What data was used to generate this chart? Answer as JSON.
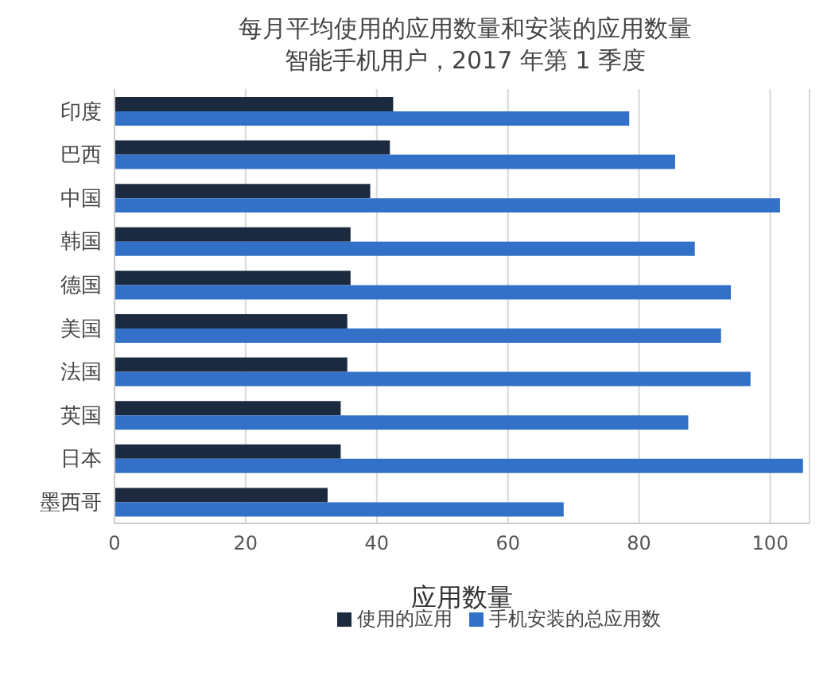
{
  "chart_data": {
    "type": "bar",
    "orientation": "horizontal",
    "title": "每月平均使用的应用数量和安装的应用数量",
    "subtitle": "智能手机用户，2017 年第 1 季度",
    "xlabel": "应用数量",
    "categories": [
      "印度",
      "巴西",
      "中国",
      "韩国",
      "德国",
      "美国",
      "法国",
      "英国",
      "日本",
      "墨西哥"
    ],
    "series": [
      {
        "name": "使用的应用",
        "color": "#1c2a3f",
        "values": [
          42.5,
          42,
          39,
          36,
          36,
          35.5,
          35.5,
          34.5,
          34.5,
          32.5
        ]
      },
      {
        "name": "手机安装的总应用数",
        "color": "#3371c9",
        "values": [
          78.5,
          85.5,
          101.5,
          88.5,
          94,
          92.5,
          97,
          87.5,
          105,
          68.5
        ]
      }
    ],
    "xlim": [
      0,
      106
    ],
    "xticks": [
      0,
      20,
      40,
      60,
      80,
      100
    ],
    "grid": "x",
    "legend": "bottom"
  }
}
